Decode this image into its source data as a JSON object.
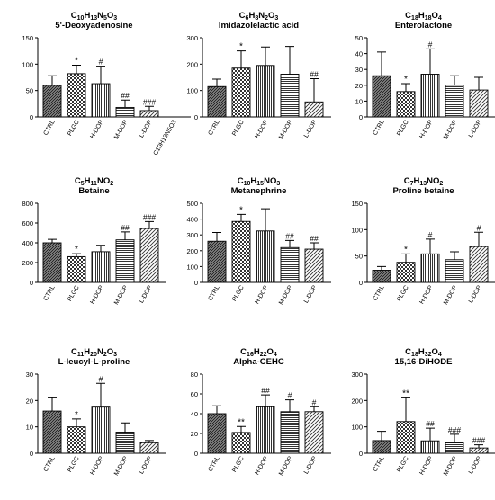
{
  "patterns": {
    "CTRL": "dark-diagonal",
    "PLGC": "checker",
    "H-DOP": "vertical-lines",
    "M-DOP": "horizontal-lines",
    "L-DOP": "fine-diagonal"
  },
  "chart_data": [
    {
      "type": "bar",
      "formula": [
        [
          "C",
          "10"
        ],
        [
          "H",
          "13"
        ],
        [
          "N",
          "5"
        ],
        [
          "O",
          "3"
        ]
      ],
      "title": "5'-Deoxyadenosine",
      "categories": [
        "CTRL",
        "PLGC",
        "H-DOP",
        "M-DOP",
        "L-DOP",
        "C10H13N5O3"
      ],
      "values": [
        60,
        82,
        63,
        18,
        12,
        null
      ],
      "errors": [
        18,
        16,
        33,
        14,
        8,
        null
      ],
      "annotations": [
        "",
        "*",
        "#",
        "##",
        "###",
        ""
      ],
      "ylim": [
        0,
        150
      ],
      "yticks": [
        0,
        50,
        100,
        150
      ]
    },
    {
      "type": "bar",
      "formula": [
        [
          "C",
          "6"
        ],
        [
          "H",
          "8"
        ],
        [
          "N",
          "2"
        ],
        [
          "O",
          "3"
        ]
      ],
      "title": "Imidazolelactic acid",
      "categories": [
        "CTRL",
        "PLGC",
        "H-DOP",
        "M-DOP",
        "L-DOP"
      ],
      "values": [
        115,
        185,
        195,
        162,
        57
      ],
      "errors": [
        28,
        65,
        70,
        105,
        88
      ],
      "annotations": [
        "",
        "*",
        "",
        "",
        "##"
      ],
      "ylim": [
        0,
        300
      ],
      "yticks": [
        0,
        100,
        200,
        300
      ]
    },
    {
      "type": "bar",
      "formula": [
        [
          "C",
          "18"
        ],
        [
          "H",
          "18"
        ],
        [
          "O",
          "4"
        ]
      ],
      "title": "Enterolactone",
      "categories": [
        "CTRL",
        "PLGC",
        "H-DOP",
        "M-DOP",
        "L-DOP"
      ],
      "values": [
        26,
        16,
        27,
        20,
        17
      ],
      "errors": [
        15,
        5,
        16,
        6,
        8
      ],
      "annotations": [
        "",
        "*",
        "#",
        "",
        ""
      ],
      "ylim": [
        0,
        50
      ],
      "yticks": [
        0,
        10,
        20,
        30,
        40,
        50
      ]
    },
    {
      "type": "bar",
      "formula": [
        [
          "C",
          "5"
        ],
        [
          "H",
          "11"
        ],
        [
          "N",
          "O",
          "2"
        ]
      ],
      "title": "Betaine",
      "categories": [
        "CTRL",
        "PLGC",
        "H-DOP",
        "M-DOP",
        "L-DOP"
      ],
      "values": [
        400,
        260,
        310,
        430,
        545
      ],
      "errors": [
        35,
        30,
        65,
        80,
        70
      ],
      "annotations": [
        "",
        "*",
        "",
        "##",
        "###"
      ],
      "ylim": [
        0,
        800
      ],
      "yticks": [
        0,
        200,
        400,
        600,
        800
      ]
    },
    {
      "type": "bar",
      "formula": [
        [
          "C",
          "10"
        ],
        [
          "H",
          "15"
        ],
        [
          "N",
          "O",
          "3"
        ]
      ],
      "title": "Metanephrine",
      "categories": [
        "CTRL",
        "PLGC",
        "H-DOP",
        "M-DOP",
        "L-DOP"
      ],
      "values": [
        260,
        385,
        325,
        220,
        210
      ],
      "errors": [
        55,
        45,
        140,
        45,
        40
      ],
      "annotations": [
        "",
        "*",
        "",
        "##",
        "##"
      ],
      "ylim": [
        0,
        500
      ],
      "yticks": [
        0,
        100,
        200,
        300,
        400,
        500
      ]
    },
    {
      "type": "bar",
      "formula": [
        [
          "C",
          "7"
        ],
        [
          "H",
          "13"
        ],
        [
          "N",
          "O",
          "2"
        ]
      ],
      "title": "Proline betaine",
      "categories": [
        "CTRL",
        "PLGC",
        "H-DOP",
        "M-DOP",
        "L-DOP"
      ],
      "values": [
        23,
        38,
        54,
        43,
        68
      ],
      "errors": [
        7,
        16,
        28,
        15,
        27
      ],
      "annotations": [
        "",
        "*",
        "#",
        "",
        "#"
      ],
      "ylim": [
        0,
        150
      ],
      "yticks": [
        0,
        50,
        100,
        150
      ]
    },
    {
      "type": "bar",
      "formula": [
        [
          "C",
          "11"
        ],
        [
          "H",
          "20"
        ],
        [
          "N",
          "2"
        ],
        [
          "O",
          "3"
        ]
      ],
      "title": "L-leucyl-L-proline",
      "categories": [
        "CTRL",
        "PLGC",
        "H-DOP",
        "M-DOP",
        "L-DOP"
      ],
      "values": [
        16,
        10,
        17.5,
        8,
        4
      ],
      "errors": [
        5,
        3,
        9,
        3.5,
        0.8
      ],
      "annotations": [
        "",
        "*",
        "#",
        "",
        ""
      ],
      "ylim": [
        0,
        30
      ],
      "yticks": [
        0,
        10,
        20,
        30
      ]
    },
    {
      "type": "bar",
      "formula": [
        [
          "C",
          "16"
        ],
        [
          "H",
          "22"
        ],
        [
          "O",
          "4"
        ]
      ],
      "title": "Alpha-CEHC",
      "categories": [
        "CTRL",
        "PLGC",
        "H-DOP",
        "M-DOP",
        "L-DOP"
      ],
      "values": [
        40,
        21,
        47,
        42,
        42
      ],
      "errors": [
        8,
        6,
        12,
        12,
        5
      ],
      "annotations": [
        "",
        "**",
        "##",
        "#",
        "#"
      ],
      "ylim": [
        0,
        80
      ],
      "yticks": [
        0,
        20,
        40,
        60,
        80
      ]
    },
    {
      "type": "bar",
      "formula": [
        [
          "C",
          "18"
        ],
        [
          "H",
          "32"
        ],
        [
          "O",
          "4"
        ]
      ],
      "title": "15,16-DiHODE",
      "categories": [
        "CTRL",
        "PLGC",
        "H-DOP",
        "M-DOP",
        "L-DOP"
      ],
      "values": [
        48,
        120,
        47,
        40,
        20
      ],
      "errors": [
        35,
        90,
        48,
        32,
        12
      ],
      "annotations": [
        "",
        "**",
        "##",
        "###",
        "###"
      ],
      "ylim": [
        0,
        300
      ],
      "yticks": [
        0,
        100,
        200,
        300
      ]
    }
  ]
}
